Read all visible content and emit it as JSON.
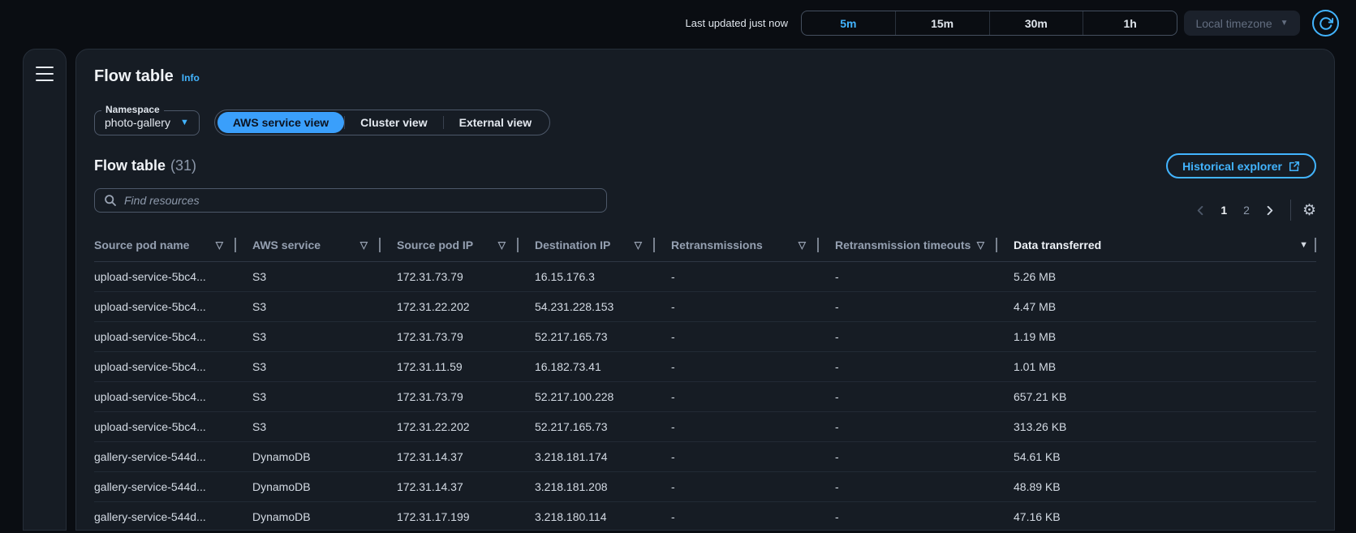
{
  "colors": {
    "accent": "#42b4ff",
    "selected_pill": "#3a9ffb",
    "page_bg": "#0a0d12",
    "card_bg": "#161c24"
  },
  "icons": {
    "filter": "▽",
    "sort_desc": "▼",
    "caret_down": "▼",
    "gear": "⚙"
  },
  "topbar": {
    "last_updated": "Last updated just now",
    "time_ranges": [
      {
        "label": "5m",
        "selected": true
      },
      {
        "label": "15m",
        "selected": false
      },
      {
        "label": "30m",
        "selected": false
      },
      {
        "label": "1h",
        "selected": false
      }
    ],
    "timezone": {
      "label": "Local timezone"
    }
  },
  "panel": {
    "title": "Flow table",
    "info_link": "Info",
    "namespace": {
      "label": "Namespace",
      "value": "photo-gallery"
    },
    "view_tabs": [
      {
        "label": "AWS service view",
        "selected": true
      },
      {
        "label": "Cluster view",
        "selected": false
      },
      {
        "label": "External view",
        "selected": false
      }
    ],
    "table_header": {
      "title": "Flow table",
      "count": "(31)"
    },
    "historical_explorer_label": "Historical explorer",
    "search": {
      "placeholder": "Find resources"
    },
    "pagination": {
      "pages": [
        {
          "label": "1",
          "current": true
        },
        {
          "label": "2",
          "current": false
        }
      ]
    }
  },
  "table": {
    "columns": [
      {
        "label": "Source pod name",
        "filter": true
      },
      {
        "label": "AWS service",
        "filter": true
      },
      {
        "label": "Source pod IP",
        "filter": true
      },
      {
        "label": "Destination IP",
        "filter": true
      },
      {
        "label": "Retransmissions",
        "filter": true
      },
      {
        "label": "Retransmission timeouts",
        "filter": true
      },
      {
        "label": "Data transferred",
        "filter": false,
        "sorted": "desc"
      }
    ],
    "rows": [
      [
        "upload-service-5bc4...",
        "S3",
        "172.31.73.79",
        "16.15.176.3",
        "-",
        "-",
        "5.26 MB"
      ],
      [
        "upload-service-5bc4...",
        "S3",
        "172.31.22.202",
        "54.231.228.153",
        "-",
        "-",
        "4.47 MB"
      ],
      [
        "upload-service-5bc4...",
        "S3",
        "172.31.73.79",
        "52.217.165.73",
        "-",
        "-",
        "1.19 MB"
      ],
      [
        "upload-service-5bc4...",
        "S3",
        "172.31.11.59",
        "16.182.73.41",
        "-",
        "-",
        "1.01 MB"
      ],
      [
        "upload-service-5bc4...",
        "S3",
        "172.31.73.79",
        "52.217.100.228",
        "-",
        "-",
        "657.21 KB"
      ],
      [
        "upload-service-5bc4...",
        "S3",
        "172.31.22.202",
        "52.217.165.73",
        "-",
        "-",
        "313.26 KB"
      ],
      [
        "gallery-service-544d...",
        "DynamoDB",
        "172.31.14.37",
        "3.218.181.174",
        "-",
        "-",
        "54.61 KB"
      ],
      [
        "gallery-service-544d...",
        "DynamoDB",
        "172.31.14.37",
        "3.218.181.208",
        "-",
        "-",
        "48.89 KB"
      ],
      [
        "gallery-service-544d...",
        "DynamoDB",
        "172.31.17.199",
        "3.218.180.114",
        "-",
        "-",
        "47.16 KB"
      ]
    ]
  }
}
